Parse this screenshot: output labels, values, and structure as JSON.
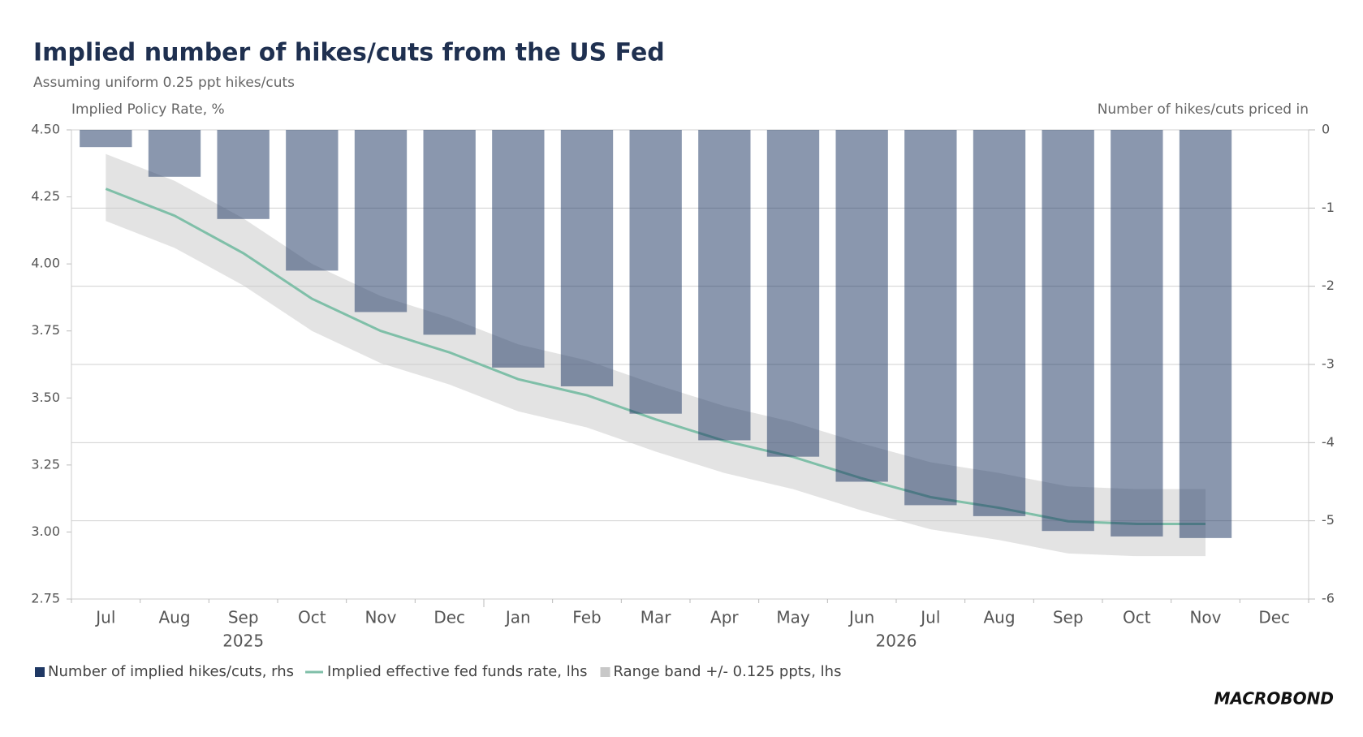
{
  "chart_data": {
    "type": "bar",
    "title": "Implied number of hikes/cuts from the US Fed",
    "subtitle": "Assuming uniform 0.25 ppt hikes/cuts",
    "y_label": "Implied Policy Rate, %",
    "y2_label": "Number of hikes/cuts priced in",
    "categories": [
      "Jul",
      "Aug",
      "Sep",
      "Oct",
      "Nov",
      "Dec",
      "Jan",
      "Feb",
      "Mar",
      "Apr",
      "May",
      "Jun",
      "Jul",
      "Aug",
      "Sep",
      "Oct",
      "Nov",
      "Dec"
    ],
    "x_groups": [
      "2025",
      "2026"
    ],
    "series": [
      {
        "name": "Number of implied hikes/cuts, rhs",
        "type": "bar",
        "axis": "y2",
        "color": "#1f3864",
        "values": [
          -0.22,
          -0.6,
          -1.14,
          -1.8,
          -2.33,
          -2.62,
          -3.04,
          -3.28,
          -3.63,
          -3.97,
          -4.18,
          -4.5,
          -4.8,
          -4.94,
          -5.13,
          -5.2,
          -5.22,
          null
        ]
      },
      {
        "name": "Implied effective fed funds rate, lhs",
        "type": "line",
        "color": "#7fbfa8",
        "values": [
          4.28,
          4.18,
          4.04,
          3.87,
          3.75,
          3.67,
          3.57,
          3.51,
          3.42,
          3.34,
          3.28,
          3.2,
          3.13,
          3.09,
          3.04,
          3.03,
          3.03,
          null
        ]
      },
      {
        "name": "Range band +/- 0.125 ppts, lhs",
        "type": "band",
        "color": "#c8c8c8",
        "upper": [
          4.41,
          4.31,
          4.17,
          4.0,
          3.88,
          3.8,
          3.7,
          3.64,
          3.55,
          3.47,
          3.41,
          3.33,
          3.26,
          3.22,
          3.17,
          3.16,
          3.16,
          null
        ],
        "lower": [
          4.16,
          4.06,
          3.92,
          3.75,
          3.63,
          3.55,
          3.45,
          3.39,
          3.3,
          3.22,
          3.16,
          3.08,
          3.01,
          2.97,
          2.92,
          2.91,
          2.91,
          null
        ]
      }
    ],
    "ylim": [
      2.75,
      4.5
    ],
    "yticks": [
      {
        "value": 2.75,
        "label": "2.75"
      },
      {
        "value": 3,
        "label": "3.00"
      },
      {
        "value": 3.25,
        "label": "3.25"
      },
      {
        "value": 3.5,
        "label": "3.50"
      },
      {
        "value": 3.75,
        "label": "3.75"
      },
      {
        "value": 4,
        "label": "4.00"
      },
      {
        "value": 4.25,
        "label": "4.25"
      },
      {
        "value": 4.5,
        "label": "4.50"
      }
    ],
    "y2lim": [
      -6,
      0
    ],
    "y2ticks": [
      -6,
      -5,
      -4,
      -3,
      -2,
      -1,
      0
    ],
    "grid": "y2",
    "legend": "bottom-left",
    "source": "MACROBOND"
  }
}
